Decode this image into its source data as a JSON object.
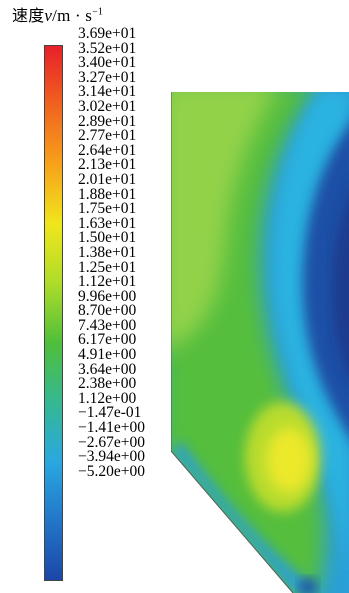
{
  "legend": {
    "title_zh": "速度",
    "title_symbol": "v",
    "title_unit": "/m · s",
    "title_exponent": "−1",
    "ticks": [
      "3.69e+01",
      "3.52e+01",
      "3.40e+01",
      "3.27e+01",
      "3.14e+01",
      "3.02e+01",
      "2.89e+01",
      "2.77e+01",
      "2.64e+01",
      "2.13e+01",
      "2.01e+01",
      "1.88e+01",
      "1.75e+01",
      "1.63e+01",
      "1.50e+01",
      "1.38e+01",
      "1.25e+01",
      "1.12e+01",
      "9.96e+00",
      "8.70e+00",
      "7.43e+00",
      "6.17e+00",
      "4.91e+00",
      "3.64e+00",
      "2.38e+00",
      "1.12e+00",
      "−1.47e-01",
      "−1.41e+00",
      "−2.67e+00",
      "−3.94e+00",
      "−5.20e+00"
    ],
    "colormap": [
      "#e8202a",
      "#f0631f",
      "#f7a21b",
      "#f0e61c",
      "#aedc2a",
      "#4fbf3a",
      "#36b891",
      "#2aa8e0",
      "#2276c8",
      "#1c47a8"
    ]
  },
  "contour": {
    "colors": {
      "outer": "#2a9fd8",
      "light_green": "#92d24a",
      "green": "#55be3c",
      "yellow_green": "#b9dc2d",
      "yellow": "#ece82a",
      "cyan_blue": "#2ab2e0",
      "dark_blue": "#1c4fa6",
      "deep_blue": "#1a3a8e"
    }
  }
}
